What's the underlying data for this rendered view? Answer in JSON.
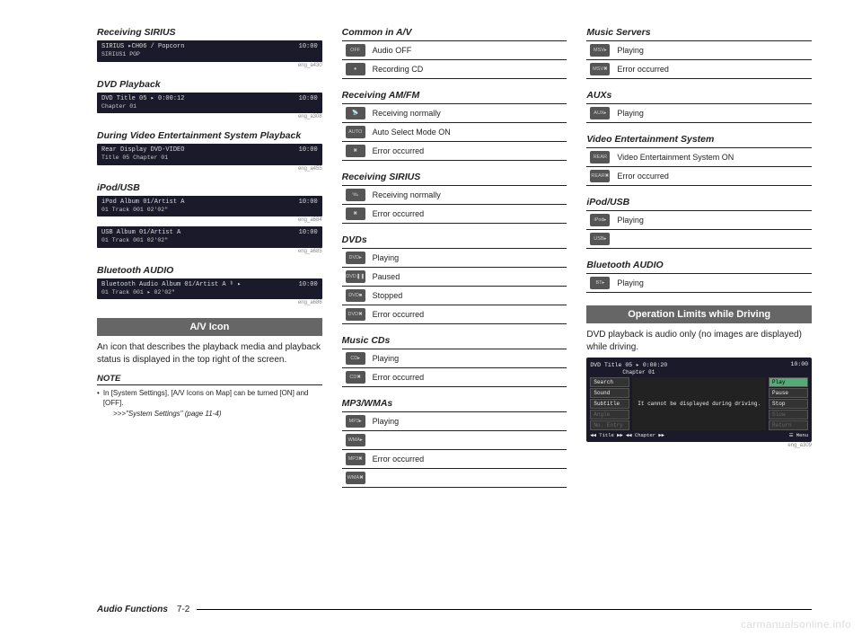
{
  "col1": {
    "s1": {
      "title": "Receiving SIRIUS",
      "line1_left": "SIRIUS  ▸CH06 / Popcorn",
      "line1_right": "10:00",
      "line2": "SIRIUS1   POP",
      "ref": "eng_a430"
    },
    "s2": {
      "title": "DVD Playback",
      "line1_left": "DVD     Title 05   ▸ 0:00:12",
      "line1_right": "10:00",
      "line2": "Chapter 01",
      "ref": "eng_a308"
    },
    "s3": {
      "title": "During Video Entertainment System Playback",
      "line1_left": "Rear Display   DVD-VIDEO",
      "line1_right": "10:00",
      "line2": "Title 05  Chapter 01",
      "ref": "eng_a455"
    },
    "s4": {
      "title": "iPod/USB",
      "a": {
        "line1_left": "iPod    Album 01/Artist A",
        "line1_right": "10:00",
        "line2": "01 Track 001     02'02\"",
        "ref": "eng_a684"
      },
      "b": {
        "line1_left": "USB     Album 01/Artist A",
        "line1_right": "10:00",
        "line2": "01 Track 001     02'02\"",
        "ref": "eng_a685"
      }
    },
    "s5": {
      "title": "Bluetooth AUDIO",
      "line1_left": "Bluetooth Audio Album 01/Artist A   ᵇ ▸",
      "line1_right": "10:00",
      "line2": "01 Track 001   ▸ 02'02\"",
      "ref": "eng_a686"
    },
    "banner": "A/V Icon",
    "para": "An icon that describes the playback media and playback status is displayed in the top right of the screen.",
    "note_hd": "NOTE",
    "note_body": "In [System Settings], [A/V Icons on Map] can be turned [ON] and [OFF].",
    "note_ref": ">>>\"System Settings\" (page 11-4)"
  },
  "col2": {
    "common": {
      "title": "Common in A/V",
      "rows": [
        [
          "OFF",
          "Audio OFF"
        ],
        [
          "●",
          "Recording CD"
        ]
      ]
    },
    "amfm": {
      "title": "Receiving AM/FM",
      "rows": [
        [
          "📡",
          "Receiving normally"
        ],
        [
          "AUTO",
          "Auto Select Mode ON"
        ],
        [
          "✖",
          "Error occurred"
        ]
      ]
    },
    "sirius": {
      "title": "Receiving SIRIUS",
      "rows": [
        [
          "🛰",
          "Receiving normally"
        ],
        [
          "✖",
          "Error occurred"
        ]
      ]
    },
    "dvds": {
      "title": "DVDs",
      "rows": [
        [
          "DVD▸",
          "Playing"
        ],
        [
          "DVD❚❚",
          "Paused"
        ],
        [
          "DVD■",
          "Stopped"
        ],
        [
          "DVD✖",
          "Error occurred"
        ]
      ]
    },
    "cds": {
      "title": "Music CDs",
      "rows": [
        [
          "CD▸",
          "Playing"
        ],
        [
          "CD✖",
          "Error occurred"
        ]
      ]
    },
    "mp3": {
      "title": "MP3/WMAs",
      "rows": [
        [
          "MP3▸",
          "Playing"
        ],
        [
          "WMA▸",
          ""
        ],
        [
          "MP3✖",
          "Error occurred"
        ],
        [
          "WMA✖",
          ""
        ]
      ]
    }
  },
  "col3": {
    "mserv": {
      "title": "Music Servers",
      "rows": [
        [
          "MSV▸",
          "Playing"
        ],
        [
          "MSV✖",
          "Error occurred"
        ]
      ]
    },
    "aux": {
      "title": "AUXs",
      "rows": [
        [
          "AUX▸",
          "Playing"
        ]
      ]
    },
    "ves": {
      "title": "Video Entertainment System",
      "rows": [
        [
          "REAR",
          "Video Entertainment System ON"
        ],
        [
          "REAR✖",
          "Error occurred"
        ]
      ]
    },
    "ipod": {
      "title": "iPod/USB",
      "rows": [
        [
          "iPod▸",
          "Playing"
        ],
        [
          "USB▸",
          ""
        ]
      ]
    },
    "bt": {
      "title": "Bluetooth AUDIO",
      "rows": [
        [
          "BT▸",
          "Playing"
        ]
      ]
    },
    "banner": "Operation Limits while Driving",
    "para": "DVD playback is audio only (no images are displayed) while driving.",
    "dvd": {
      "top_left": "DVD     Title 05    ▸ 0:00:20",
      "top_right": "10:00",
      "top_line2": "Chapter 01",
      "left_menu": [
        "Search",
        "Sound",
        "Subtitle",
        "Angle",
        "No. Entry"
      ],
      "center": "It cannot be displayed during driving.",
      "right_menu": [
        "Play",
        "Pause",
        "Stop",
        "Slow",
        "Return"
      ],
      "bottom_left": "◀◀ Title ▶▶   ◀◀ Chapter ▶▶",
      "bottom_right": "☰ Menu",
      "ref": "eng_a309"
    }
  },
  "footer": {
    "label": "Audio Functions",
    "page": "7-2"
  },
  "watermark": "carmanualsonline.info"
}
